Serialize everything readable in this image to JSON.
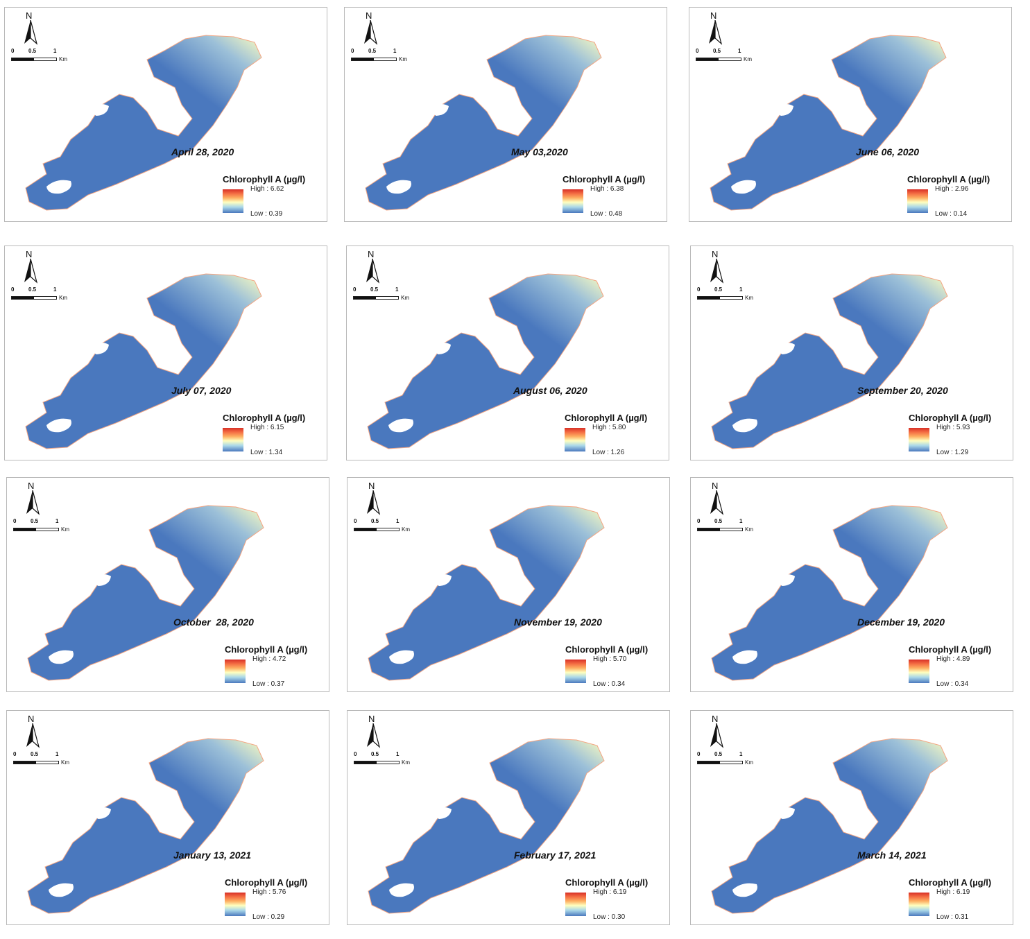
{
  "map_common": {
    "north_label": "N",
    "scale_ticks": [
      "0",
      "0.5",
      "1"
    ],
    "scale_unit": "Km",
    "legend_title": "Chlorophyll A (µg/l)"
  },
  "colors": {
    "low": "#4a78be",
    "mid": "#ffffbf",
    "high": "#d73027"
  },
  "panels": [
    {
      "date": "April 28, 2020",
      "high_text": "High : 6.62",
      "low_text": "Low : 0.39"
    },
    {
      "date": "May 03,2020",
      "high_text": "High : 6.38",
      "low_text": "Low : 0.48"
    },
    {
      "date": "June 06, 2020",
      "high_text": "High : 2.96",
      "low_text": "Low : 0.14"
    },
    {
      "date": "July 07, 2020",
      "high_text": "High : 6.15",
      "low_text": "Low : 1.34"
    },
    {
      "date": "August 06, 2020",
      "high_text": "High : 5.80",
      "low_text": "Low : 1.26"
    },
    {
      "date": "September 20, 2020",
      "high_text": "High : 5.93",
      "low_text": "Low : 1.29"
    },
    {
      "date": "October  28, 2020",
      "high_text": "High : 4.72",
      "low_text": "Low : 0.37"
    },
    {
      "date": "November 19, 2020",
      "high_text": "High : 5.70",
      "low_text": "Low : 0.34"
    },
    {
      "date": "December 19, 2020",
      "high_text": "High : 4.89",
      "low_text": "Low : 0.34"
    },
    {
      "date": "January 13, 2021",
      "high_text": "High : 5.76",
      "low_text": "Low : 0.29"
    },
    {
      "date": "February 17, 2021",
      "high_text": "High : 6.19",
      "low_text": "Low : 0.30"
    },
    {
      "date": "March 14, 2021",
      "high_text": "High : 6.19",
      "low_text": "Low : 0.31"
    }
  ]
}
